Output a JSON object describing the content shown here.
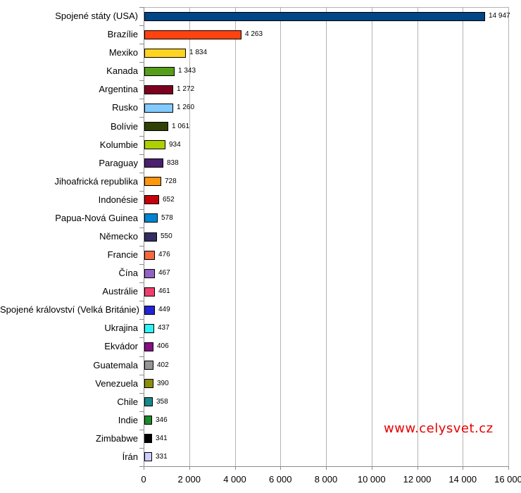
{
  "chart_data": {
    "type": "bar",
    "orientation": "horizontal",
    "title": "",
    "xlabel": "",
    "ylabel": "",
    "legend": "none",
    "grid": "vertical-major",
    "xlim": [
      0,
      16000
    ],
    "x_ticks": [
      0,
      2000,
      4000,
      6000,
      8000,
      10000,
      12000,
      14000,
      16000
    ],
    "x_tick_labels": [
      "0",
      "2 000",
      "4 000",
      "6 000",
      "8 000",
      "10 000",
      "12 000",
      "14 000",
      "16 000"
    ],
    "categories": [
      "Spojené státy (USA)",
      "Brazílie",
      "Mexiko",
      "Kanada",
      "Argentina",
      "Rusko",
      "Bolívie",
      "Kolumbie",
      "Paraguay",
      "Jihoafrická republika",
      "Indonésie",
      "Papua-Nová Guinea",
      "Německo",
      "Francie",
      "Čína",
      "Austrálie",
      "Spojené království (Velká Británie)",
      "Ukrajina",
      "Ekvádor",
      "Guatemala",
      "Venezuela",
      "Chile",
      "Indie",
      "Zimbabwe",
      "Írán"
    ],
    "values": [
      14947,
      4263,
      1834,
      1343,
      1272,
      1260,
      1061,
      934,
      838,
      728,
      652,
      578,
      550,
      476,
      467,
      461,
      449,
      437,
      406,
      402,
      390,
      358,
      346,
      341,
      331
    ],
    "value_labels": [
      "14 947",
      "4 263",
      "1 834",
      "1 343",
      "1 272",
      "1 260",
      "1 061",
      "934",
      "838",
      "728",
      "652",
      "578",
      "550",
      "476",
      "467",
      "461",
      "449",
      "437",
      "406",
      "402",
      "390",
      "358",
      "346",
      "341",
      "331"
    ],
    "bar_colors": [
      "#004586",
      "#FF420E",
      "#FFD320",
      "#579D1C",
      "#7E0021",
      "#83CAFF",
      "#314004",
      "#AECF00",
      "#4B1F6F",
      "#FF950E",
      "#C5000B",
      "#0084D1",
      "#322E63",
      "#F8683F",
      "#9362C8",
      "#EF3E6E",
      "#2222D6",
      "#2FF3F3",
      "#870E88",
      "#969696",
      "#8E8E0D",
      "#15898B",
      "#1C8A28",
      "#000000",
      "#CCCCFF"
    ]
  },
  "watermark": {
    "text": "www.celysvet.cz",
    "color": "#e60000"
  },
  "style_colors": {
    "grid": "#b3b3b3",
    "axis": "#8c8c8c",
    "bar_border": "#000000",
    "background": "#ffffff",
    "text": "#000000"
  }
}
